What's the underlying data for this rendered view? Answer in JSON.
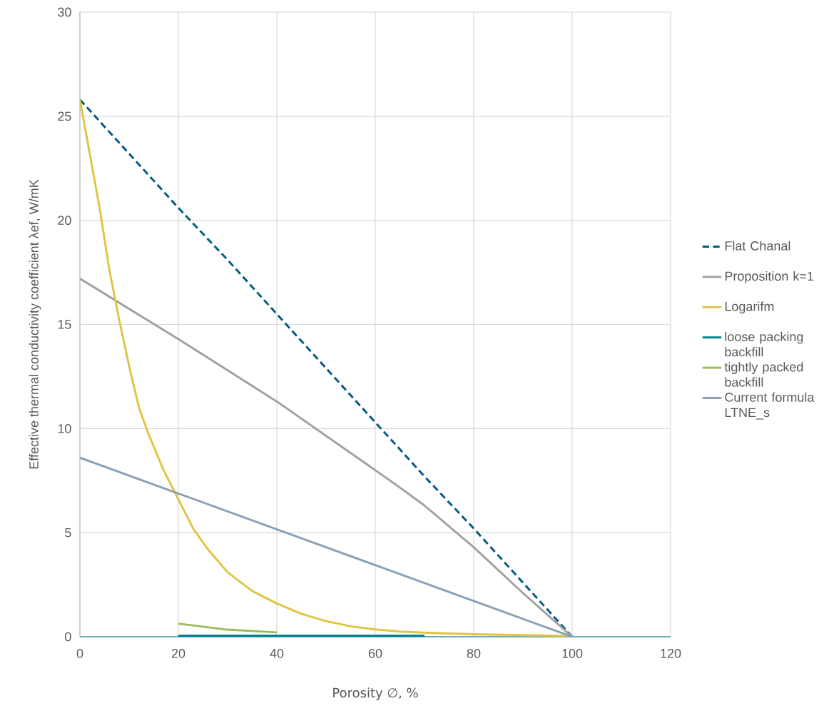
{
  "chart_data": {
    "type": "line",
    "xlabel": "Porosity ∅, %",
    "ylabel": "Effective thermal conductivity coefficient  λef, W/mK",
    "xlim": [
      0,
      120
    ],
    "xticks": [
      0,
      20,
      40,
      60,
      80,
      100,
      120
    ],
    "ylim": [
      0,
      30
    ],
    "yticks": [
      0,
      5,
      10,
      15,
      20,
      25,
      30
    ],
    "grid": true,
    "legend": "right",
    "marker": "none",
    "series": [
      {
        "name": "Flat Chanal",
        "color": "#005b7f",
        "line_style": "dashed",
        "x": [
          0,
          10,
          20,
          30,
          40,
          50,
          60,
          70,
          80,
          90,
          100
        ],
        "values": [
          25.8,
          23.2,
          20.6,
          18.1,
          15.5,
          12.9,
          10.3,
          7.7,
          5.2,
          2.6,
          0
        ]
      },
      {
        "name": "Proposition k=1",
        "color": "#a0a0a0",
        "x": [
          0,
          20,
          40,
          60,
          66,
          70,
          80,
          90,
          100
        ],
        "values": [
          17.2,
          14.3,
          11.3,
          8.0,
          7.0,
          6.3,
          4.3,
          2.1,
          0
        ]
      },
      {
        "name": "Logarifm",
        "color": "#e0c442",
        "x": [
          0,
          2,
          4,
          6,
          8,
          10,
          12,
          14,
          17,
          20,
          23,
          26,
          30,
          35,
          40,
          45,
          50,
          55,
          60,
          65,
          70,
          80,
          90,
          100
        ],
        "values": [
          25.8,
          23.2,
          20.6,
          17.6,
          15.2,
          13.0,
          11.0,
          9.7,
          8.0,
          6.6,
          5.2,
          4.2,
          3.1,
          2.2,
          1.6,
          1.1,
          0.75,
          0.5,
          0.35,
          0.25,
          0.2,
          0.12,
          0.08,
          0.03
        ]
      },
      {
        "name": "loose packing backfill",
        "color": "#00838f",
        "x": [
          20,
          70
        ],
        "values": [
          0.05,
          0.05
        ]
      },
      {
        "name": "tightly packed backfill",
        "color": "#9bbb59",
        "x": [
          20,
          30,
          40
        ],
        "values": [
          0.63,
          0.34,
          0.21
        ]
      },
      {
        "name": "Current formula LTNE_s",
        "color": "#8aa0b5",
        "x": [
          0,
          20,
          40,
          60,
          80,
          100
        ],
        "values": [
          8.6,
          6.88,
          5.16,
          3.44,
          1.72,
          0
        ]
      }
    ]
  }
}
